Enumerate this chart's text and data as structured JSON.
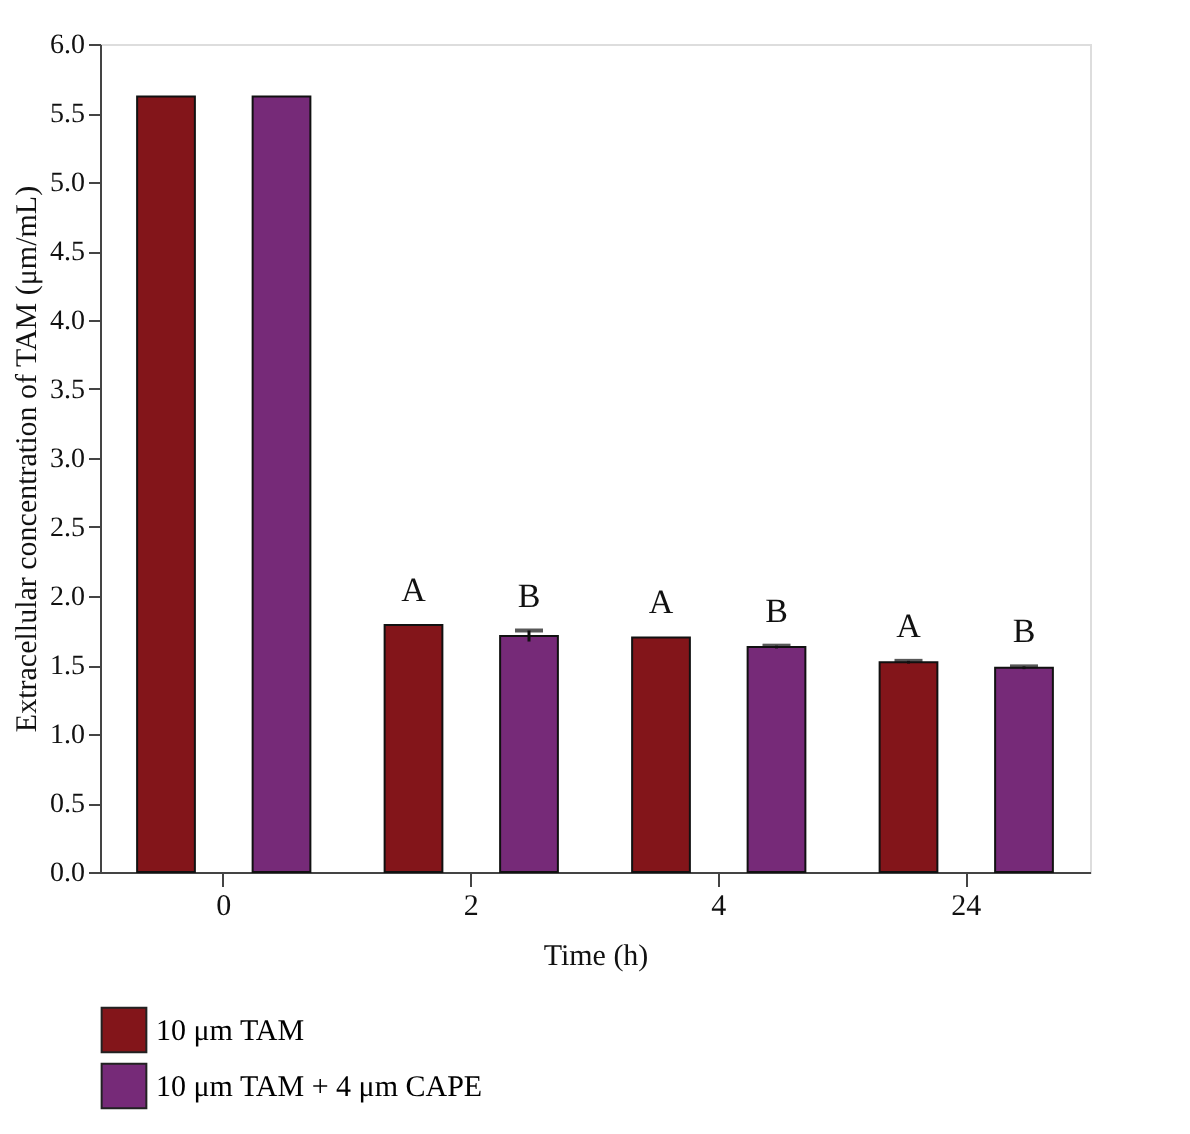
{
  "chart_data": {
    "type": "bar",
    "xlabel": "Time (h)",
    "ylabel": "Extracellular concentration of TAM (μm/mL)",
    "categories": [
      "0",
      "2",
      "4",
      "24"
    ],
    "series": [
      {
        "name": "10 μm TAM",
        "color": "#83151a",
        "values": [
          5.62,
          1.79,
          1.7,
          1.52
        ],
        "errors": [
          null,
          null,
          null,
          0.01
        ]
      },
      {
        "name": "10 μm TAM + 4 μm CAPE",
        "color": "#762a78",
        "values": [
          5.62,
          1.71,
          1.63,
          1.48
        ],
        "errors": [
          null,
          0.04,
          0.01,
          0.01
        ]
      }
    ],
    "ylim": [
      0,
      6
    ],
    "yticks": [
      {
        "value": 0,
        "label": "0.0"
      },
      {
        "value": 0.5,
        "label": "0.5"
      },
      {
        "value": 1,
        "label": "1.0"
      },
      {
        "value": 1.5,
        "label": "1.5"
      },
      {
        "value": 2,
        "label": "2.0"
      },
      {
        "value": 2.5,
        "label": "2.5"
      },
      {
        "value": 3,
        "label": "3.0"
      },
      {
        "value": 3.5,
        "label": "3.5"
      },
      {
        "value": 4,
        "label": "4.0"
      },
      {
        "value": 4.5,
        "label": "4.5"
      },
      {
        "value": 5,
        "label": "5.0"
      },
      {
        "value": 5.5,
        "label": "5.5"
      },
      {
        "value": 6,
        "label": "6.0"
      }
    ],
    "annotations": [
      "A",
      "B",
      "A",
      "B",
      "A",
      "B"
    ],
    "grid": false,
    "legend": "bottom left"
  }
}
